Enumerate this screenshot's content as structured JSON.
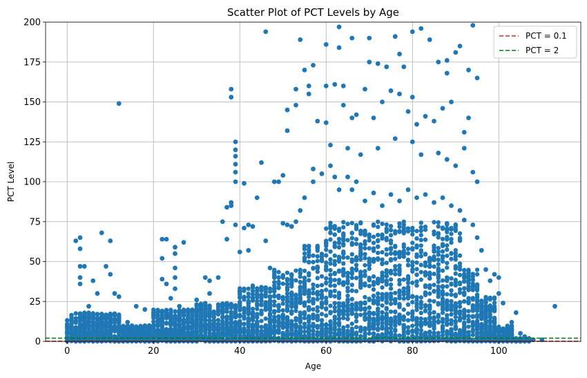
{
  "chart_data": {
    "type": "scatter",
    "title": "Scatter Plot of PCT Levels by Age",
    "xlabel": "Age",
    "ylabel": "PCT Level",
    "xlim": [
      -5,
      119
    ],
    "ylim": [
      0,
      200
    ],
    "xticks": [
      0,
      20,
      40,
      60,
      80,
      100
    ],
    "yticks": [
      0,
      25,
      50,
      75,
      100,
      125,
      150,
      175,
      200
    ],
    "grid": true,
    "legend_position": "top-right",
    "point_color": "#1f77b4",
    "lines": [
      {
        "name": "PCT = 0.1",
        "y": 0.1,
        "color": "#d62728",
        "style": "dashed"
      },
      {
        "name": "PCT = 2",
        "y": 2,
        "color": "#008000",
        "style": "dashed"
      }
    ],
    "points": [
      [
        12,
        149
      ],
      [
        46,
        194
      ],
      [
        63,
        197
      ],
      [
        94,
        198
      ],
      [
        82,
        196
      ],
      [
        66,
        190
      ],
      [
        70,
        190
      ],
      [
        76,
        191
      ],
      [
        80,
        194
      ],
      [
        84,
        189
      ],
      [
        91,
        185
      ],
      [
        77,
        180
      ],
      [
        88,
        176
      ],
      [
        90,
        181
      ],
      [
        93,
        170
      ],
      [
        95,
        165
      ],
      [
        60,
        186
      ],
      [
        57,
        173
      ],
      [
        55,
        170
      ],
      [
        54,
        189
      ],
      [
        63,
        184
      ],
      [
        70,
        175
      ],
      [
        72,
        174
      ],
      [
        74,
        172
      ],
      [
        78,
        172
      ],
      [
        86,
        175
      ],
      [
        88,
        168
      ],
      [
        38,
        158
      ],
      [
        38,
        153
      ],
      [
        39,
        125
      ],
      [
        39,
        120
      ],
      [
        39,
        116
      ],
      [
        39,
        111
      ],
      [
        39,
        106
      ],
      [
        39,
        100
      ],
      [
        41,
        99
      ],
      [
        45,
        112
      ],
      [
        49,
        100
      ],
      [
        50,
        104
      ],
      [
        51,
        145
      ],
      [
        51,
        132
      ],
      [
        53,
        158
      ],
      [
        53,
        148
      ],
      [
        56,
        160
      ],
      [
        56,
        155
      ],
      [
        58,
        138
      ],
      [
        60,
        160
      ],
      [
        60,
        137
      ],
      [
        62,
        161
      ],
      [
        64,
        160
      ],
      [
        64,
        148
      ],
      [
        66,
        140
      ],
      [
        67,
        142
      ],
      [
        69,
        158
      ],
      [
        71,
        140
      ],
      [
        73,
        150
      ],
      [
        75,
        157
      ],
      [
        77,
        155
      ],
      [
        79,
        144
      ],
      [
        80,
        153
      ],
      [
        81,
        136
      ],
      [
        83,
        141
      ],
      [
        85,
        138
      ],
      [
        87,
        146
      ],
      [
        89,
        150
      ],
      [
        92,
        131
      ],
      [
        93,
        140
      ],
      [
        61,
        123
      ],
      [
        65,
        121
      ],
      [
        68,
        117
      ],
      [
        72,
        121
      ],
      [
        76,
        127
      ],
      [
        80,
        125
      ],
      [
        82,
        117
      ],
      [
        86,
        118
      ],
      [
        88,
        114
      ],
      [
        90,
        110
      ],
      [
        92,
        121
      ],
      [
        94,
        106
      ],
      [
        95,
        100
      ],
      [
        3,
        65
      ],
      [
        2,
        63
      ],
      [
        3,
        58
      ],
      [
        3,
        47
      ],
      [
        4,
        47
      ],
      [
        3,
        40
      ],
      [
        3,
        36
      ],
      [
        6,
        38
      ],
      [
        8,
        68
      ],
      [
        10,
        63
      ],
      [
        11,
        30
      ],
      [
        12,
        28
      ],
      [
        9,
        47
      ],
      [
        10,
        42
      ],
      [
        7,
        30
      ],
      [
        5,
        22
      ],
      [
        6,
        16
      ],
      [
        8,
        10
      ],
      [
        10,
        12
      ],
      [
        11,
        8
      ],
      [
        14,
        12
      ],
      [
        16,
        22
      ],
      [
        17,
        8
      ],
      [
        18,
        20
      ],
      [
        19,
        6
      ],
      [
        22,
        52
      ],
      [
        22,
        64
      ],
      [
        23,
        64
      ],
      [
        22,
        39
      ],
      [
        23,
        36
      ],
      [
        25,
        59
      ],
      [
        25,
        55
      ],
      [
        25,
        46
      ],
      [
        25,
        40
      ],
      [
        25,
        33
      ],
      [
        27,
        62
      ],
      [
        24,
        27
      ],
      [
        26,
        22
      ],
      [
        26,
        14
      ],
      [
        28,
        8
      ],
      [
        30,
        26
      ],
      [
        31,
        20
      ],
      [
        32,
        40
      ],
      [
        33,
        38
      ],
      [
        33,
        30
      ],
      [
        35,
        40
      ],
      [
        36,
        75
      ],
      [
        37,
        64
      ],
      [
        37,
        84
      ],
      [
        38,
        87
      ],
      [
        38,
        85
      ],
      [
        39,
        73
      ],
      [
        40,
        56
      ],
      [
        41,
        71
      ],
      [
        42,
        73
      ],
      [
        42,
        57
      ],
      [
        43,
        72
      ],
      [
        44,
        90
      ],
      [
        46,
        63
      ],
      [
        47,
        46
      ],
      [
        48,
        100
      ],
      [
        50,
        74
      ],
      [
        51,
        73
      ],
      [
        52,
        72
      ],
      [
        53,
        75
      ],
      [
        54,
        82
      ],
      [
        55,
        90
      ],
      [
        57,
        108
      ],
      [
        57,
        100
      ],
      [
        59,
        105
      ],
      [
        61,
        110
      ],
      [
        62,
        103
      ],
      [
        63,
        95
      ],
      [
        65,
        103
      ],
      [
        66,
        95
      ],
      [
        67,
        100
      ],
      [
        69,
        88
      ],
      [
        71,
        93
      ],
      [
        73,
        85
      ],
      [
        75,
        92
      ],
      [
        77,
        88
      ],
      [
        79,
        95
      ],
      [
        81,
        90
      ],
      [
        83,
        92
      ],
      [
        85,
        87
      ],
      [
        87,
        90
      ],
      [
        89,
        85
      ],
      [
        91,
        82
      ],
      [
        92,
        76
      ],
      [
        94,
        73
      ],
      [
        95,
        65
      ],
      [
        96,
        57
      ],
      [
        97,
        45
      ],
      [
        98,
        38
      ],
      [
        99,
        42
      ],
      [
        100,
        40
      ],
      [
        100,
        30
      ],
      [
        101,
        24
      ],
      [
        103,
        12
      ],
      [
        104,
        18
      ],
      [
        105,
        5
      ],
      [
        106,
        3
      ],
      [
        113,
        22
      ],
      [
        110,
        1
      ],
      [
        108,
        1
      ]
    ]
  }
}
